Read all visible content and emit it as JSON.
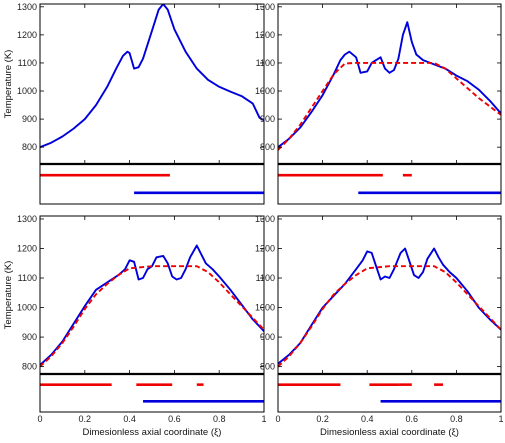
{
  "chart_data": [
    {
      "type": "line",
      "panel": "top-left",
      "ylabel": "Temperature (K)",
      "xlabel": "",
      "xlim": [
        0,
        1
      ],
      "ylim": [
        740,
        1310
      ],
      "yticks": [
        800,
        900,
        1000,
        1100,
        1200,
        1300
      ],
      "xticks": [],
      "series": [
        {
          "color": "#0000dd",
          "dash": "solid",
          "x": [
            0,
            0.05,
            0.1,
            0.15,
            0.2,
            0.25,
            0.3,
            0.34,
            0.37,
            0.39,
            0.4,
            0.42,
            0.44,
            0.46,
            0.48,
            0.5,
            0.53,
            0.55,
            0.57,
            0.6,
            0.65,
            0.7,
            0.75,
            0.8,
            0.85,
            0.9,
            0.95,
            0.98,
            1.0
          ],
          "values": [
            800,
            816,
            838,
            866,
            900,
            950,
            1015,
            1080,
            1125,
            1140,
            1135,
            1080,
            1085,
            1115,
            1165,
            1215,
            1290,
            1310,
            1290,
            1220,
            1140,
            1080,
            1040,
            1015,
            998,
            982,
            955,
            905,
            895
          ]
        }
      ],
      "strip": [
        {
          "color": "#ee0000",
          "row": 1,
          "segments": [
            [
              0,
              0.58
            ]
          ]
        },
        {
          "color": "#0000dd",
          "row": 2,
          "segments": [
            [
              0.42,
              1.0
            ]
          ]
        }
      ]
    },
    {
      "type": "line",
      "panel": "top-right",
      "ylabel": "",
      "xlabel": "",
      "xlim": [
        0,
        1
      ],
      "ylim": [
        740,
        1310
      ],
      "yticks": [
        800,
        900,
        1000,
        1100,
        1200,
        1300
      ],
      "xticks": [],
      "series": [
        {
          "color": "#0000dd",
          "dash": "solid",
          "x": [
            0,
            0.05,
            0.1,
            0.15,
            0.2,
            0.25,
            0.28,
            0.3,
            0.32,
            0.35,
            0.37,
            0.4,
            0.42,
            0.44,
            0.46,
            0.48,
            0.5,
            0.52,
            0.54,
            0.56,
            0.58,
            0.6,
            0.62,
            0.65,
            0.7,
            0.75,
            0.8,
            0.85,
            0.9,
            0.95,
            1.0
          ],
          "values": [
            800,
            830,
            870,
            925,
            985,
            1060,
            1110,
            1130,
            1140,
            1120,
            1065,
            1070,
            1100,
            1110,
            1120,
            1080,
            1065,
            1075,
            1115,
            1200,
            1245,
            1175,
            1130,
            1110,
            1095,
            1080,
            1055,
            1035,
            1005,
            965,
            920
          ]
        },
        {
          "color": "#ee0000",
          "dash": "dashed",
          "x": [
            0,
            0.05,
            0.1,
            0.15,
            0.2,
            0.25,
            0.3,
            0.35,
            0.4,
            0.5,
            0.6,
            0.65,
            0.7,
            0.75,
            0.8,
            0.85,
            0.9,
            0.95,
            1.0
          ],
          "values": [
            790,
            830,
            880,
            940,
            1000,
            1060,
            1098,
            1100,
            1100,
            1100,
            1100,
            1100,
            1100,
            1080,
            1045,
            1010,
            975,
            945,
            915
          ]
        }
      ],
      "strip": [
        {
          "color": "#ee0000",
          "row": 1,
          "segments": [
            [
              0,
              0.47
            ],
            [
              0.56,
              0.6
            ]
          ]
        },
        {
          "color": "#0000dd",
          "row": 2,
          "segments": [
            [
              0.36,
              1.0
            ]
          ]
        }
      ]
    },
    {
      "type": "line",
      "panel": "bottom-left",
      "ylabel": "Temperature (K)",
      "xlabel": "Dimesionless axial coordinate (ξ)",
      "xlim": [
        0,
        1
      ],
      "ylim": [
        775,
        1310
      ],
      "yticks": [
        800,
        900,
        1000,
        1100,
        1200,
        1300
      ],
      "xticks": [
        "0",
        "0.2",
        "0.4",
        "0.6",
        "0.8",
        "1"
      ],
      "series": [
        {
          "color": "#0000dd",
          "dash": "solid",
          "x": [
            0,
            0.05,
            0.1,
            0.15,
            0.2,
            0.25,
            0.3,
            0.35,
            0.38,
            0.4,
            0.42,
            0.44,
            0.46,
            0.48,
            0.5,
            0.52,
            0.55,
            0.57,
            0.59,
            0.61,
            0.63,
            0.65,
            0.67,
            0.7,
            0.72,
            0.74,
            0.77,
            0.8,
            0.85,
            0.9,
            0.95,
            1.0
          ],
          "values": [
            805,
            840,
            885,
            945,
            1005,
            1060,
            1085,
            1110,
            1130,
            1160,
            1155,
            1095,
            1100,
            1130,
            1140,
            1170,
            1175,
            1150,
            1105,
            1095,
            1100,
            1130,
            1170,
            1210,
            1180,
            1150,
            1130,
            1105,
            1060,
            1010,
            960,
            920
          ]
        },
        {
          "color": "#ee0000",
          "dash": "dashed",
          "x": [
            0,
            0.05,
            0.1,
            0.15,
            0.2,
            0.25,
            0.3,
            0.35,
            0.4,
            0.5,
            0.6,
            0.7,
            0.75,
            0.8,
            0.85,
            0.9,
            0.95,
            1.0
          ],
          "values": [
            800,
            835,
            880,
            935,
            995,
            1045,
            1080,
            1110,
            1133,
            1140,
            1140,
            1140,
            1120,
            1085,
            1045,
            1005,
            965,
            925
          ]
        }
      ],
      "strip": [
        {
          "color": "#ee0000",
          "row": 1,
          "segments": [
            [
              0,
              0.32
            ],
            [
              0.43,
              0.59
            ],
            [
              0.7,
              0.73
            ]
          ]
        },
        {
          "color": "#0000dd",
          "row": 2,
          "segments": [
            [
              0.46,
              1.0
            ]
          ]
        }
      ]
    },
    {
      "type": "line",
      "panel": "bottom-right",
      "ylabel": "",
      "xlabel": "Dimesionless axial coordinate (ξ)",
      "xlim": [
        0,
        1
      ],
      "ylim": [
        775,
        1310
      ],
      "yticks": [
        800,
        900,
        1000,
        1100,
        1200,
        1300
      ],
      "xticks": [
        "0",
        "0.2",
        "0.4",
        "0.6",
        "0.8",
        "1"
      ],
      "series": [
        {
          "color": "#0000dd",
          "dash": "solid",
          "x": [
            0,
            0.05,
            0.1,
            0.15,
            0.2,
            0.25,
            0.3,
            0.35,
            0.38,
            0.4,
            0.42,
            0.44,
            0.46,
            0.48,
            0.5,
            0.52,
            0.55,
            0.57,
            0.59,
            0.61,
            0.63,
            0.65,
            0.67,
            0.7,
            0.72,
            0.74,
            0.77,
            0.8,
            0.85,
            0.9,
            0.95,
            1.0
          ],
          "values": [
            810,
            840,
            880,
            940,
            1000,
            1040,
            1080,
            1130,
            1160,
            1190,
            1185,
            1140,
            1095,
            1105,
            1100,
            1130,
            1185,
            1200,
            1155,
            1110,
            1100,
            1120,
            1165,
            1200,
            1170,
            1145,
            1120,
            1100,
            1055,
            1000,
            960,
            925
          ]
        },
        {
          "color": "#ee0000",
          "dash": "dashed",
          "x": [
            0,
            0.05,
            0.1,
            0.15,
            0.2,
            0.25,
            0.3,
            0.35,
            0.4,
            0.5,
            0.6,
            0.7,
            0.75,
            0.8,
            0.85,
            0.9,
            0.95,
            1.0
          ],
          "values": [
            800,
            835,
            880,
            935,
            995,
            1045,
            1080,
            1110,
            1133,
            1140,
            1140,
            1140,
            1120,
            1085,
            1045,
            1005,
            965,
            925
          ]
        }
      ],
      "strip": [
        {
          "color": "#ee0000",
          "row": 1,
          "segments": [
            [
              0,
              0.28
            ],
            [
              0.41,
              0.54
            ],
            [
              0.54,
              0.6
            ],
            [
              0.7,
              0.74
            ]
          ]
        },
        {
          "color": "#0000dd",
          "row": 2,
          "segments": [
            [
              0.46,
              1.0
            ]
          ]
        }
      ]
    }
  ]
}
